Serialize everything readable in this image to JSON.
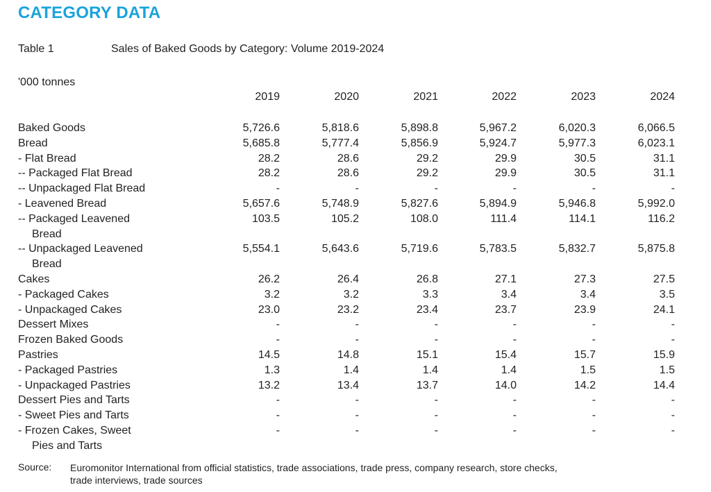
{
  "heading": "CATEGORY DATA",
  "table": {
    "id": "Table 1",
    "caption": "Sales of Baked Goods by Category: Volume 2019-2024",
    "unit": "'000 tonnes",
    "years": [
      "2019",
      "2020",
      "2021",
      "2022",
      "2023",
      "2024"
    ],
    "rows": [
      {
        "label": "Baked Goods",
        "cont": "",
        "values": [
          "5,726.6",
          "5,818.6",
          "5,898.8",
          "5,967.2",
          "6,020.3",
          "6,066.5"
        ]
      },
      {
        "label": "Bread",
        "cont": "",
        "values": [
          "5,685.8",
          "5,777.4",
          "5,856.9",
          "5,924.7",
          "5,977.3",
          "6,023.1"
        ]
      },
      {
        "label": "- Flat Bread",
        "cont": "",
        "values": [
          "28.2",
          "28.6",
          "29.2",
          "29.9",
          "30.5",
          "31.1"
        ]
      },
      {
        "label": "-- Packaged Flat Bread",
        "cont": "",
        "values": [
          "28.2",
          "28.6",
          "29.2",
          "29.9",
          "30.5",
          "31.1"
        ]
      },
      {
        "label": "-- Unpackaged Flat Bread",
        "cont": "",
        "values": [
          "-",
          "-",
          "-",
          "-",
          "-",
          "-"
        ]
      },
      {
        "label": "- Leavened Bread",
        "cont": "",
        "values": [
          "5,657.6",
          "5,748.9",
          "5,827.6",
          "5,894.9",
          "5,946.8",
          "5,992.0"
        ]
      },
      {
        "label": "-- Packaged Leavened",
        "cont": "Bread",
        "values": [
          "103.5",
          "105.2",
          "108.0",
          "111.4",
          "114.1",
          "116.2"
        ]
      },
      {
        "label": "-- Unpackaged Leavened",
        "cont": "Bread",
        "values": [
          "5,554.1",
          "5,643.6",
          "5,719.6",
          "5,783.5",
          "5,832.7",
          "5,875.8"
        ]
      },
      {
        "label": "Cakes",
        "cont": "",
        "values": [
          "26.2",
          "26.4",
          "26.8",
          "27.1",
          "27.3",
          "27.5"
        ]
      },
      {
        "label": "- Packaged Cakes",
        "cont": "",
        "values": [
          "3.2",
          "3.2",
          "3.3",
          "3.4",
          "3.4",
          "3.5"
        ]
      },
      {
        "label": "- Unpackaged Cakes",
        "cont": "",
        "values": [
          "23.0",
          "23.2",
          "23.4",
          "23.7",
          "23.9",
          "24.1"
        ]
      },
      {
        "label": "Dessert Mixes",
        "cont": "",
        "values": [
          "-",
          "-",
          "-",
          "-",
          "-",
          "-"
        ]
      },
      {
        "label": "Frozen Baked Goods",
        "cont": "",
        "values": [
          "-",
          "-",
          "-",
          "-",
          "-",
          "-"
        ]
      },
      {
        "label": "Pastries",
        "cont": "",
        "values": [
          "14.5",
          "14.8",
          "15.1",
          "15.4",
          "15.7",
          "15.9"
        ]
      },
      {
        "label": "- Packaged Pastries",
        "cont": "",
        "values": [
          "1.3",
          "1.4",
          "1.4",
          "1.4",
          "1.5",
          "1.5"
        ]
      },
      {
        "label": "- Unpackaged Pastries",
        "cont": "",
        "values": [
          "13.2",
          "13.4",
          "13.7",
          "14.0",
          "14.2",
          "14.4"
        ]
      },
      {
        "label": "Dessert Pies and Tarts",
        "cont": "",
        "values": [
          "-",
          "-",
          "-",
          "-",
          "-",
          "-"
        ]
      },
      {
        "label": "- Sweet Pies and Tarts",
        "cont": "",
        "values": [
          "-",
          "-",
          "-",
          "-",
          "-",
          "-"
        ]
      },
      {
        "label": "- Frozen Cakes, Sweet",
        "cont": "Pies and Tarts",
        "values": [
          "-",
          "-",
          "-",
          "-",
          "-",
          "-"
        ]
      }
    ]
  },
  "source": {
    "label": "Source:",
    "text": "Euromonitor International from official statistics, trade associations, trade press, company research, store checks, trade interviews, trade sources"
  },
  "colors": {
    "heading": "#1aa3dc",
    "text": "#222222",
    "background": "#ffffff"
  }
}
